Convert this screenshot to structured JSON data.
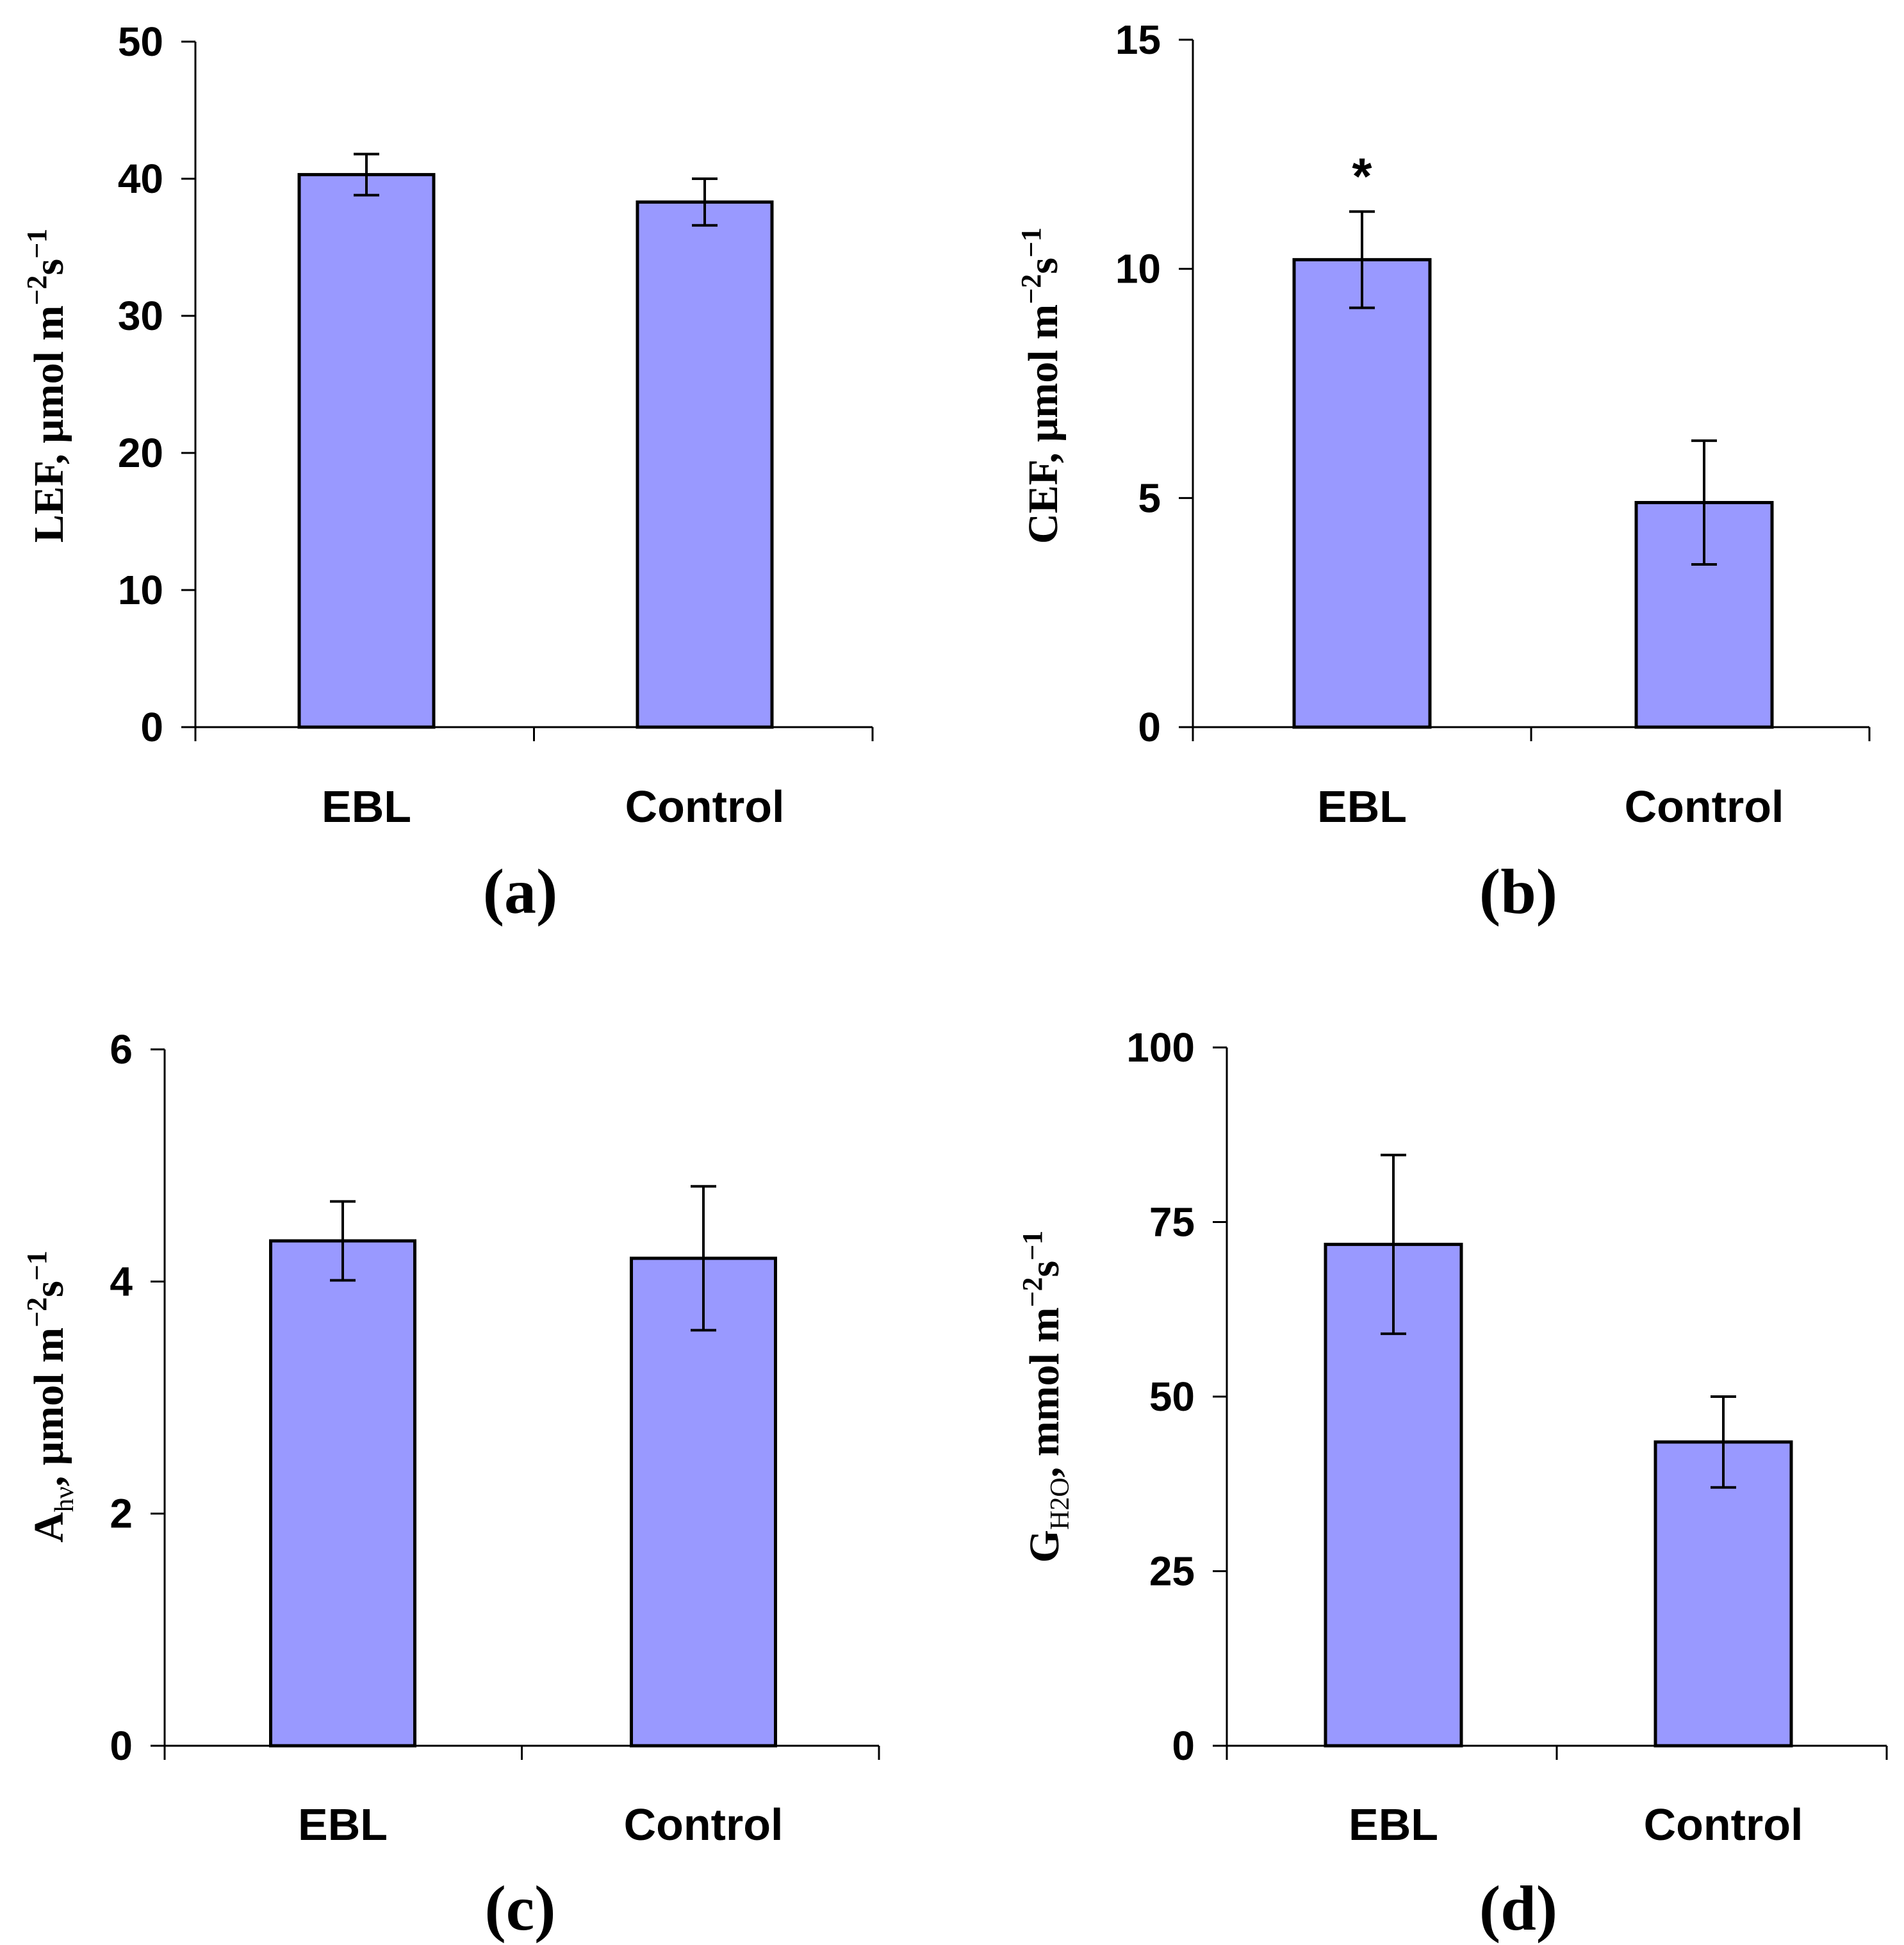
{
  "colors": {
    "bar_fill": "#9999ff",
    "bar_stroke": "#000000",
    "background": "#ffffff"
  },
  "chart_data": [
    {
      "type": "bar",
      "panel_label": "(a)",
      "ylabel": {
        "main": "LEF, μmol m",
        "sup1": "−2",
        "mid": "s",
        "sup2": "−1"
      },
      "categories": [
        "EBL",
        "Control"
      ],
      "values": [
        40.3,
        38.3
      ],
      "errors": [
        1.5,
        1.7
      ],
      "ylim": [
        0,
        50
      ],
      "yticks": [
        0,
        10,
        20,
        30,
        40,
        50
      ],
      "yticklabels": [
        "0",
        "10",
        "20",
        "30",
        "40",
        "50"
      ],
      "annotations": [
        "",
        ""
      ]
    },
    {
      "type": "bar",
      "panel_label": "(b)",
      "ylabel": {
        "main": "CEF, μmol m",
        "sup1": "−2",
        "mid": "s",
        "sup2": "−1"
      },
      "categories": [
        "EBL",
        "Control"
      ],
      "values": [
        10.2,
        4.9
      ],
      "errors": [
        1.05,
        1.35
      ],
      "ylim": [
        0,
        15
      ],
      "yticks": [
        0,
        5,
        10,
        15
      ],
      "yticklabels": [
        "0",
        "5",
        "10",
        "15"
      ],
      "annotations": [
        "*",
        ""
      ]
    },
    {
      "type": "bar",
      "panel_label": "(c)",
      "ylabel": {
        "main": "A",
        "sub": "hν",
        "after": ", μmol m",
        "sup1": "−2",
        "mid": "s",
        "sup2": "−1"
      },
      "categories": [
        "EBL",
        "Control"
      ],
      "values": [
        4.35,
        4.2
      ],
      "errors": [
        0.34,
        0.62
      ],
      "ylim": [
        0,
        6
      ],
      "yticks": [
        0,
        2,
        4,
        6
      ],
      "yticklabels": [
        "0",
        "2",
        "4",
        "6"
      ],
      "annotations": [
        "",
        ""
      ]
    },
    {
      "type": "bar",
      "panel_label": "(d)",
      "ylabel": {
        "main": "G",
        "sub": "H2O",
        "after": ", mmol m",
        "sup1": "−2",
        "mid": "s",
        "sup2": "−1"
      },
      "categories": [
        "EBL",
        "Control"
      ],
      "values": [
        71.8,
        43.5
      ],
      "errors": [
        12.8,
        6.5
      ],
      "ylim": [
        0,
        100
      ],
      "yticks": [
        0,
        25,
        50,
        75,
        100
      ],
      "yticklabels": [
        "0",
        "25",
        "50",
        "75",
        "100"
      ],
      "annotations": [
        "",
        ""
      ]
    }
  ]
}
